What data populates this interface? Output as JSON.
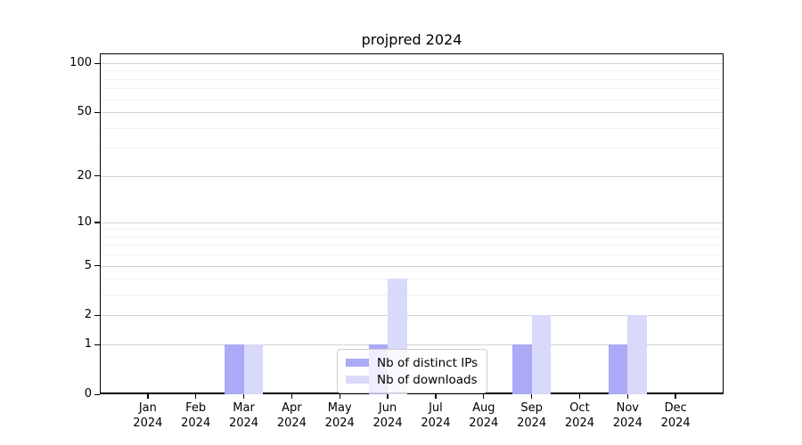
{
  "title": "projpred 2024",
  "chart_data": {
    "type": "bar",
    "title": "projpred 2024",
    "x": {
      "months": [
        "Jan",
        "Feb",
        "Mar",
        "Apr",
        "May",
        "Jun",
        "Jul",
        "Aug",
        "Sep",
        "Oct",
        "Nov",
        "Dec"
      ],
      "year": "2024"
    },
    "series": [
      {
        "name": "Nb of distinct IPs",
        "color": "#aaaaf6",
        "values": [
          0,
          0,
          1,
          0,
          0,
          1,
          0,
          0,
          1,
          0,
          1,
          0
        ]
      },
      {
        "name": "Nb of downloads",
        "color": "#d9d9fa",
        "values": [
          0,
          0,
          1,
          0,
          0,
          4,
          0,
          0,
          2,
          0,
          2,
          0
        ]
      }
    ],
    "y_axis": {
      "scale": "log1p",
      "major_ticks": [
        0,
        1,
        2,
        5,
        10,
        20,
        50,
        100
      ],
      "minor_ticks": [
        3,
        4,
        6,
        7,
        8,
        9,
        30,
        40,
        60,
        70,
        80,
        90
      ],
      "ylim": [
        0,
        100
      ],
      "grid": true
    },
    "legend": {
      "position": "lower center"
    }
  }
}
